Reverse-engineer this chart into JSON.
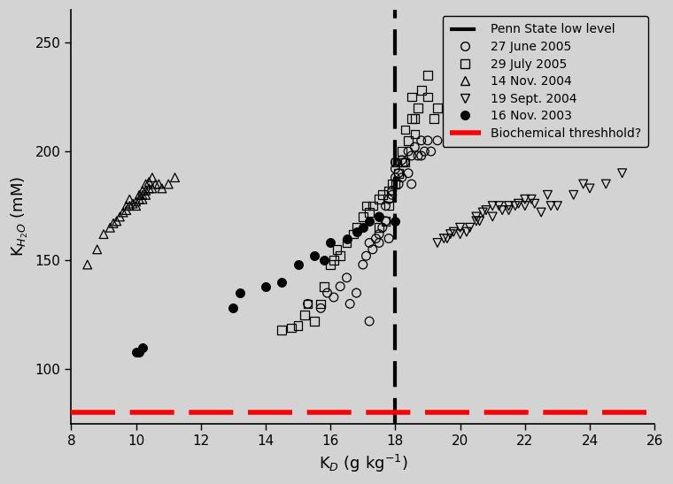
{
  "xlabel": "K$_D$ (g kg$^{-1}$)",
  "ylabel": "K$_{H_2O}$ (mM)",
  "xlim": [
    8,
    26
  ],
  "ylim": [
    75,
    265
  ],
  "xticks": [
    8,
    10,
    12,
    14,
    16,
    18,
    20,
    22,
    24,
    26
  ],
  "yticks": [
    100,
    150,
    200,
    250
  ],
  "penn_state_x": 18.0,
  "biochemical_y": 80,
  "background_color": "#d3d3d3",
  "legend_fontsize": 10,
  "axis_fontsize": 13,
  "tick_fontsize": 11,
  "june2005_x": [
    15.3,
    15.7,
    15.9,
    16.1,
    16.3,
    16.5,
    16.6,
    16.8,
    17.0,
    17.1,
    17.2,
    17.3,
    17.4,
    17.5,
    17.5,
    17.6,
    17.7,
    17.7,
    17.8,
    17.9,
    17.9,
    18.0,
    18.0,
    18.0,
    18.1,
    18.1,
    18.2,
    18.2,
    18.3,
    18.4,
    18.4,
    18.5,
    18.6,
    18.7,
    18.8,
    18.9,
    19.0,
    19.1,
    19.3,
    17.2,
    17.8,
    18.3,
    18.8,
    17.5,
    18.5
  ],
  "june2005_y": [
    130,
    128,
    135,
    133,
    138,
    142,
    130,
    135,
    148,
    152,
    158,
    155,
    160,
    162,
    170,
    165,
    175,
    168,
    178,
    182,
    180,
    188,
    192,
    195,
    185,
    190,
    188,
    196,
    195,
    190,
    200,
    198,
    202,
    198,
    205,
    200,
    205,
    200,
    205,
    122,
    160,
    195,
    198,
    158,
    185
  ],
  "july2005_x": [
    14.5,
    14.8,
    15.0,
    15.2,
    15.5,
    15.7,
    16.0,
    16.1,
    16.3,
    16.5,
    16.7,
    16.8,
    17.0,
    17.2,
    17.3,
    17.5,
    17.5,
    17.6,
    17.7,
    17.8,
    17.9,
    18.0,
    18.0,
    18.1,
    18.2,
    18.3,
    18.3,
    18.4,
    18.5,
    18.5,
    18.6,
    18.7,
    18.8,
    19.0,
    19.0,
    19.2,
    19.3,
    15.3,
    16.2,
    17.1,
    17.8,
    18.2,
    18.6,
    15.8
  ],
  "july2005_y": [
    118,
    119,
    120,
    125,
    122,
    130,
    148,
    150,
    152,
    158,
    162,
    165,
    170,
    172,
    175,
    178,
    165,
    180,
    168,
    175,
    185,
    185,
    195,
    190,
    200,
    195,
    210,
    205,
    215,
    225,
    215,
    220,
    228,
    225,
    235,
    215,
    220,
    130,
    155,
    175,
    182,
    195,
    208,
    138
  ],
  "nov2004_x": [
    8.5,
    8.8,
    9.0,
    9.2,
    9.3,
    9.4,
    9.5,
    9.6,
    9.7,
    9.7,
    9.8,
    9.8,
    9.9,
    10.0,
    10.0,
    10.1,
    10.1,
    10.2,
    10.2,
    10.2,
    10.3,
    10.3,
    10.3,
    10.4,
    10.4,
    10.5,
    10.5,
    10.6,
    10.7,
    10.8,
    11.0,
    11.2
  ],
  "nov2004_y": [
    148,
    155,
    162,
    165,
    167,
    168,
    170,
    172,
    173,
    175,
    175,
    178,
    176,
    175,
    177,
    178,
    180,
    180,
    182,
    178,
    182,
    180,
    185,
    183,
    186,
    183,
    188,
    185,
    185,
    183,
    185,
    188
  ],
  "sept2004_x": [
    19.3,
    19.5,
    19.7,
    19.8,
    20.0,
    20.0,
    20.2,
    20.3,
    20.5,
    20.5,
    20.7,
    20.8,
    21.0,
    21.0,
    21.2,
    21.3,
    21.5,
    21.5,
    21.8,
    22.0,
    22.0,
    22.2,
    22.3,
    22.5,
    22.8,
    23.0,
    23.5,
    24.0,
    24.5,
    25.0,
    19.6,
    20.6,
    21.7,
    22.7,
    23.8
  ],
  "sept2004_y": [
    158,
    160,
    162,
    163,
    162,
    165,
    163,
    165,
    168,
    170,
    172,
    173,
    170,
    175,
    175,
    173,
    173,
    175,
    176,
    175,
    178,
    178,
    176,
    172,
    175,
    175,
    180,
    183,
    185,
    190,
    160,
    168,
    175,
    180,
    185
  ],
  "nov2003_x": [
    10.0,
    10.1,
    10.2,
    13.0,
    13.2,
    14.0,
    14.5,
    15.0,
    15.5,
    15.8,
    16.0,
    16.5,
    16.8,
    17.0,
    17.2,
    17.5,
    18.0
  ],
  "nov2003_y": [
    108,
    108,
    110,
    128,
    135,
    138,
    140,
    148,
    152,
    150,
    158,
    160,
    163,
    165,
    168,
    170,
    168
  ]
}
